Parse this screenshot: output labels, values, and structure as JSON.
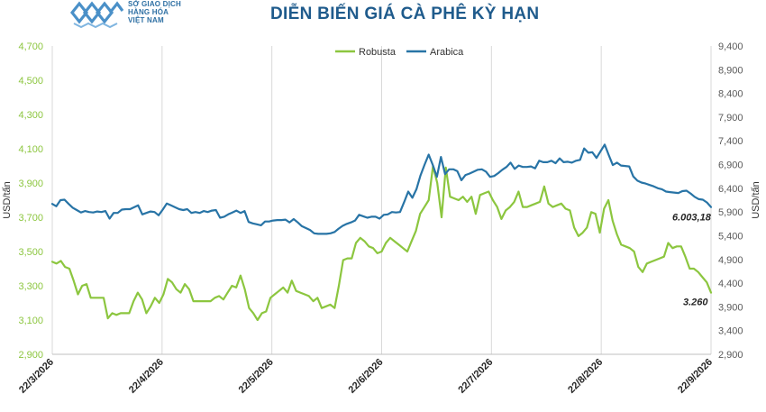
{
  "logo": {
    "line1": "SỞ GIAO DỊCH",
    "line2": "HÀNG HÓA",
    "line3": "VIỆT NAM",
    "icon": "wave-logo-icon",
    "color": "#2d6fa3"
  },
  "chart_data": {
    "type": "line",
    "title": "DIỄN BIẾN GIÁ CÀ PHÊ KỲ HẠN",
    "legend_position": "top-center",
    "grid": "vertical",
    "x_tick_labels": [
      "22/3/2026",
      "22/4/2026",
      "22/5/2026",
      "22/6/2026",
      "22/7/2026",
      "22/8/2026",
      "22/9/2026"
    ],
    "y_left": {
      "label": "USD/tấn",
      "range": [
        2900,
        4700
      ],
      "ticks": [
        "2,900",
        "3,100",
        "3,300",
        "3,500",
        "3,700",
        "3,900",
        "4,100",
        "4,300",
        "4,500",
        "4,700"
      ],
      "color": "#8cc63f"
    },
    "y_right": {
      "label": "USD/tấn",
      "range": [
        2900,
        9400
      ],
      "ticks": [
        "2,900",
        "3,400",
        "3,900",
        "4,400",
        "4,900",
        "5,400",
        "5,900",
        "6,400",
        "6,900",
        "7,400",
        "7,900",
        "8,400",
        "8,900",
        "9,400"
      ],
      "color": "#595959"
    },
    "series": [
      {
        "name": "Robusta",
        "axis": "left",
        "color": "#8cc63f",
        "end_label": "3.260",
        "values": [
          3440,
          3430,
          3445,
          3410,
          3400,
          3330,
          3250,
          3300,
          3310,
          3230,
          3230,
          3230,
          3230,
          3110,
          3140,
          3130,
          3140,
          3140,
          3140,
          3210,
          3260,
          3220,
          3140,
          3180,
          3230,
          3200,
          3250,
          3340,
          3320,
          3280,
          3260,
          3310,
          3280,
          3210,
          3210,
          3210,
          3210,
          3210,
          3230,
          3240,
          3220,
          3260,
          3300,
          3290,
          3360,
          3280,
          3170,
          3140,
          3100,
          3140,
          3150,
          3230,
          3250,
          3270,
          3290,
          3260,
          3330,
          3270,
          3260,
          3250,
          3240,
          3210,
          3230,
          3170,
          3180,
          3190,
          3170,
          3300,
          3450,
          3460,
          3460,
          3550,
          3580,
          3560,
          3530,
          3520,
          3490,
          3500,
          3550,
          3580,
          3560,
          3540,
          3520,
          3500,
          3560,
          3620,
          3720,
          3760,
          3800,
          4000,
          3900,
          3700,
          3990,
          3820,
          3810,
          3800,
          3820,
          3790,
          3820,
          3720,
          3830,
          3840,
          3850,
          3800,
          3760,
          3690,
          3740,
          3760,
          3790,
          3850,
          3760,
          3760,
          3770,
          3780,
          3790,
          3880,
          3780,
          3760,
          3770,
          3780,
          3750,
          3740,
          3640,
          3590,
          3610,
          3640,
          3730,
          3720,
          3610,
          3750,
          3800,
          3680,
          3600,
          3540,
          3530,
          3520,
          3500,
          3410,
          3380,
          3430,
          3440,
          3450,
          3460,
          3470,
          3550,
          3520,
          3530,
          3530,
          3470,
          3400,
          3400,
          3380,
          3350,
          3320,
          3260
        ]
      },
      {
        "name": "Arabica",
        "axis": "right",
        "color": "#2874a6",
        "end_label": "6.003,18",
        "values": [
          6070,
          6020,
          6150,
          6160,
          6070,
          5990,
          5940,
          5890,
          5920,
          5900,
          5890,
          5910,
          5900,
          5920,
          5760,
          5880,
          5880,
          5950,
          5960,
          5960,
          6000,
          6040,
          5850,
          5880,
          5910,
          5900,
          5830,
          5950,
          6080,
          6040,
          6000,
          5960,
          5940,
          5960,
          5880,
          5900,
          5880,
          5920,
          5900,
          5930,
          5940,
          5780,
          5800,
          5850,
          5890,
          5930,
          5880,
          5920,
          5690,
          5660,
          5640,
          5620,
          5700,
          5700,
          5720,
          5730,
          5730,
          5740,
          5680,
          5750,
          5680,
          5600,
          5560,
          5520,
          5450,
          5440,
          5440,
          5440,
          5450,
          5480,
          5550,
          5610,
          5650,
          5680,
          5720,
          5840,
          5810,
          5780,
          5800,
          5800,
          5760,
          5840,
          5850,
          5900,
          5890,
          5900,
          6110,
          6330,
          6200,
          6380,
          6670,
          6900,
          7110,
          6890,
          6640,
          7060,
          6700,
          6800,
          6800,
          6760,
          6570,
          6680,
          6710,
          6750,
          6790,
          6800,
          6750,
          6640,
          6660,
          6720,
          6790,
          6850,
          6940,
          6810,
          6880,
          6850,
          6850,
          6860,
          6820,
          6980,
          6950,
          6950,
          6980,
          6930,
          7030,
          6950,
          6960,
          6940,
          6980,
          7000,
          7240,
          7150,
          7160,
          7040,
          7180,
          7320,
          7100,
          6890,
          6940,
          6880,
          6870,
          6860,
          6650,
          6560,
          6520,
          6500,
          6470,
          6440,
          6400,
          6380,
          6330,
          6320,
          6310,
          6300,
          6340,
          6350,
          6290,
          6220,
          6170,
          6160,
          6100,
          6003
        ]
      }
    ]
  }
}
